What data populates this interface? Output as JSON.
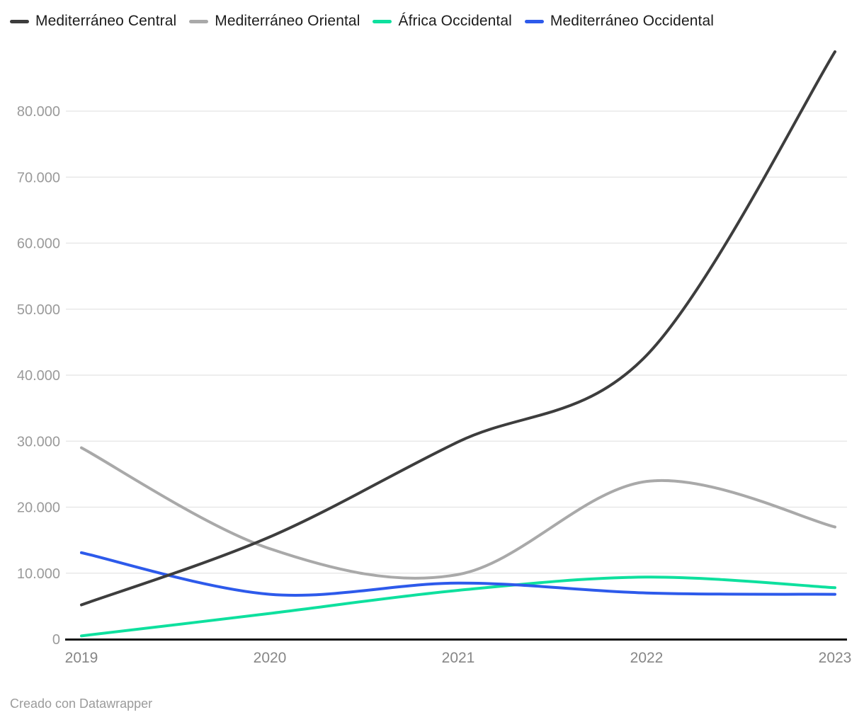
{
  "background_color": "#ffffff",
  "footer": {
    "credit": "Creado con Datawrapper"
  },
  "chart_data": {
    "type": "line",
    "curve": "smooth",
    "grid": "horizontal",
    "legend_position": "top",
    "x": [
      2019,
      2020,
      2021,
      2022,
      2023
    ],
    "x_tick_labels": [
      "2019",
      "2020",
      "2021",
      "2022",
      "2023"
    ],
    "y_ticks": [
      0,
      10000,
      20000,
      30000,
      40000,
      50000,
      60000,
      70000,
      80000
    ],
    "y_tick_labels": [
      "0",
      "10.000",
      "20.000",
      "30.000",
      "40.000",
      "50.000",
      "60.000",
      "70.000",
      "80.000"
    ],
    "ylim": [
      0,
      89000
    ],
    "axis_color": "#151515",
    "gridline_color": "#e8e8e8",
    "y_tick_label_color": "#9a9a9a",
    "x_tick_label_color": "#868686",
    "series": [
      {
        "name": "Mediterráneo Central",
        "color": "#3d3d3d",
        "values": [
          5200,
          15500,
          29900,
          43000,
          89000
        ]
      },
      {
        "name": "Mediterráneo Oriental",
        "color": "#a9a9a9",
        "values": [
          29000,
          13700,
          9800,
          23900,
          17000
        ]
      },
      {
        "name": "África Occidental",
        "color": "#0ee09e",
        "values": [
          500,
          3900,
          7400,
          9400,
          7800
        ]
      },
      {
        "name": "Mediterráneo Occidental",
        "color": "#2d5aeb",
        "values": [
          13100,
          6800,
          8500,
          7000,
          6800
        ]
      }
    ]
  }
}
